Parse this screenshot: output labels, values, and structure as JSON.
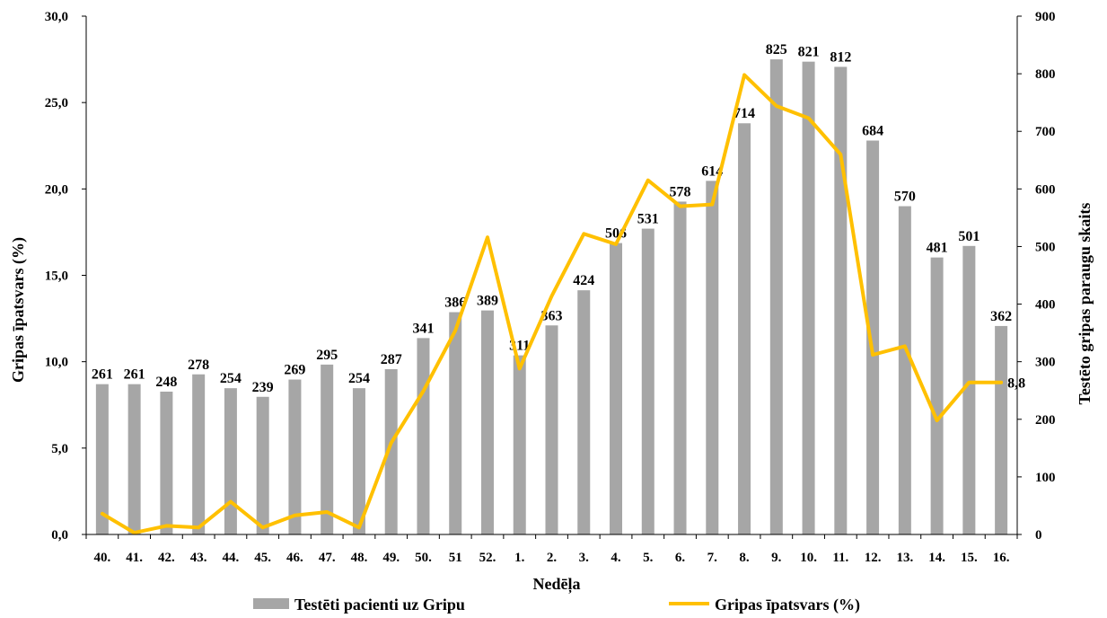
{
  "chart_data": {
    "type": "bar+line",
    "categories": [
      "40.",
      "41.",
      "42.",
      "43.",
      "44.",
      "45.",
      "46.",
      "47.",
      "48.",
      "49.",
      "50.",
      "51",
      "52.",
      "1.",
      "2.",
      "3.",
      "4.",
      "5.",
      "6.",
      "7.",
      "8.",
      "9.",
      "10.",
      "11.",
      "12.",
      "13.",
      "14.",
      "15.",
      "16."
    ],
    "series": [
      {
        "name": "Testēti pacienti uz Gripu",
        "type": "bar",
        "axis": "right",
        "color": "#a6a6a6",
        "values": [
          261,
          261,
          248,
          278,
          254,
          239,
          269,
          295,
          254,
          287,
          341,
          386,
          389,
          311,
          363,
          424,
          506,
          531,
          578,
          614,
          714,
          825,
          821,
          812,
          684,
          570,
          481,
          501,
          362
        ]
      },
      {
        "name": "Gripas īpatsvars (%)",
        "type": "line",
        "axis": "left",
        "color": "#ffc000",
        "values": [
          1.2,
          0.1,
          0.5,
          0.4,
          1.9,
          0.4,
          1.1,
          1.3,
          0.4,
          5.3,
          8.3,
          11.8,
          17.2,
          9.6,
          13.8,
          17.4,
          16.8,
          20.5,
          19.0,
          19.1,
          26.6,
          24.8,
          24.1,
          22.0,
          10.4,
          10.9,
          6.6,
          8.8,
          8.8
        ],
        "end_label": "8,8"
      }
    ],
    "xlabel": "Nedēļa",
    "ylabel": "Gripas īpatsvars (%)",
    "y2label": "Testēto gripas paraugu skaits",
    "ylim": [
      0,
      30
    ],
    "y2lim": [
      0,
      900
    ],
    "y_ticks": [
      "0,0",
      "5,0",
      "10,0",
      "15,0",
      "20,0",
      "25,0",
      "30,0"
    ],
    "y2_ticks": [
      "0",
      "100",
      "200",
      "300",
      "400",
      "500",
      "600",
      "700",
      "800",
      "900"
    ],
    "grid": false,
    "legend_position": "bottom"
  }
}
